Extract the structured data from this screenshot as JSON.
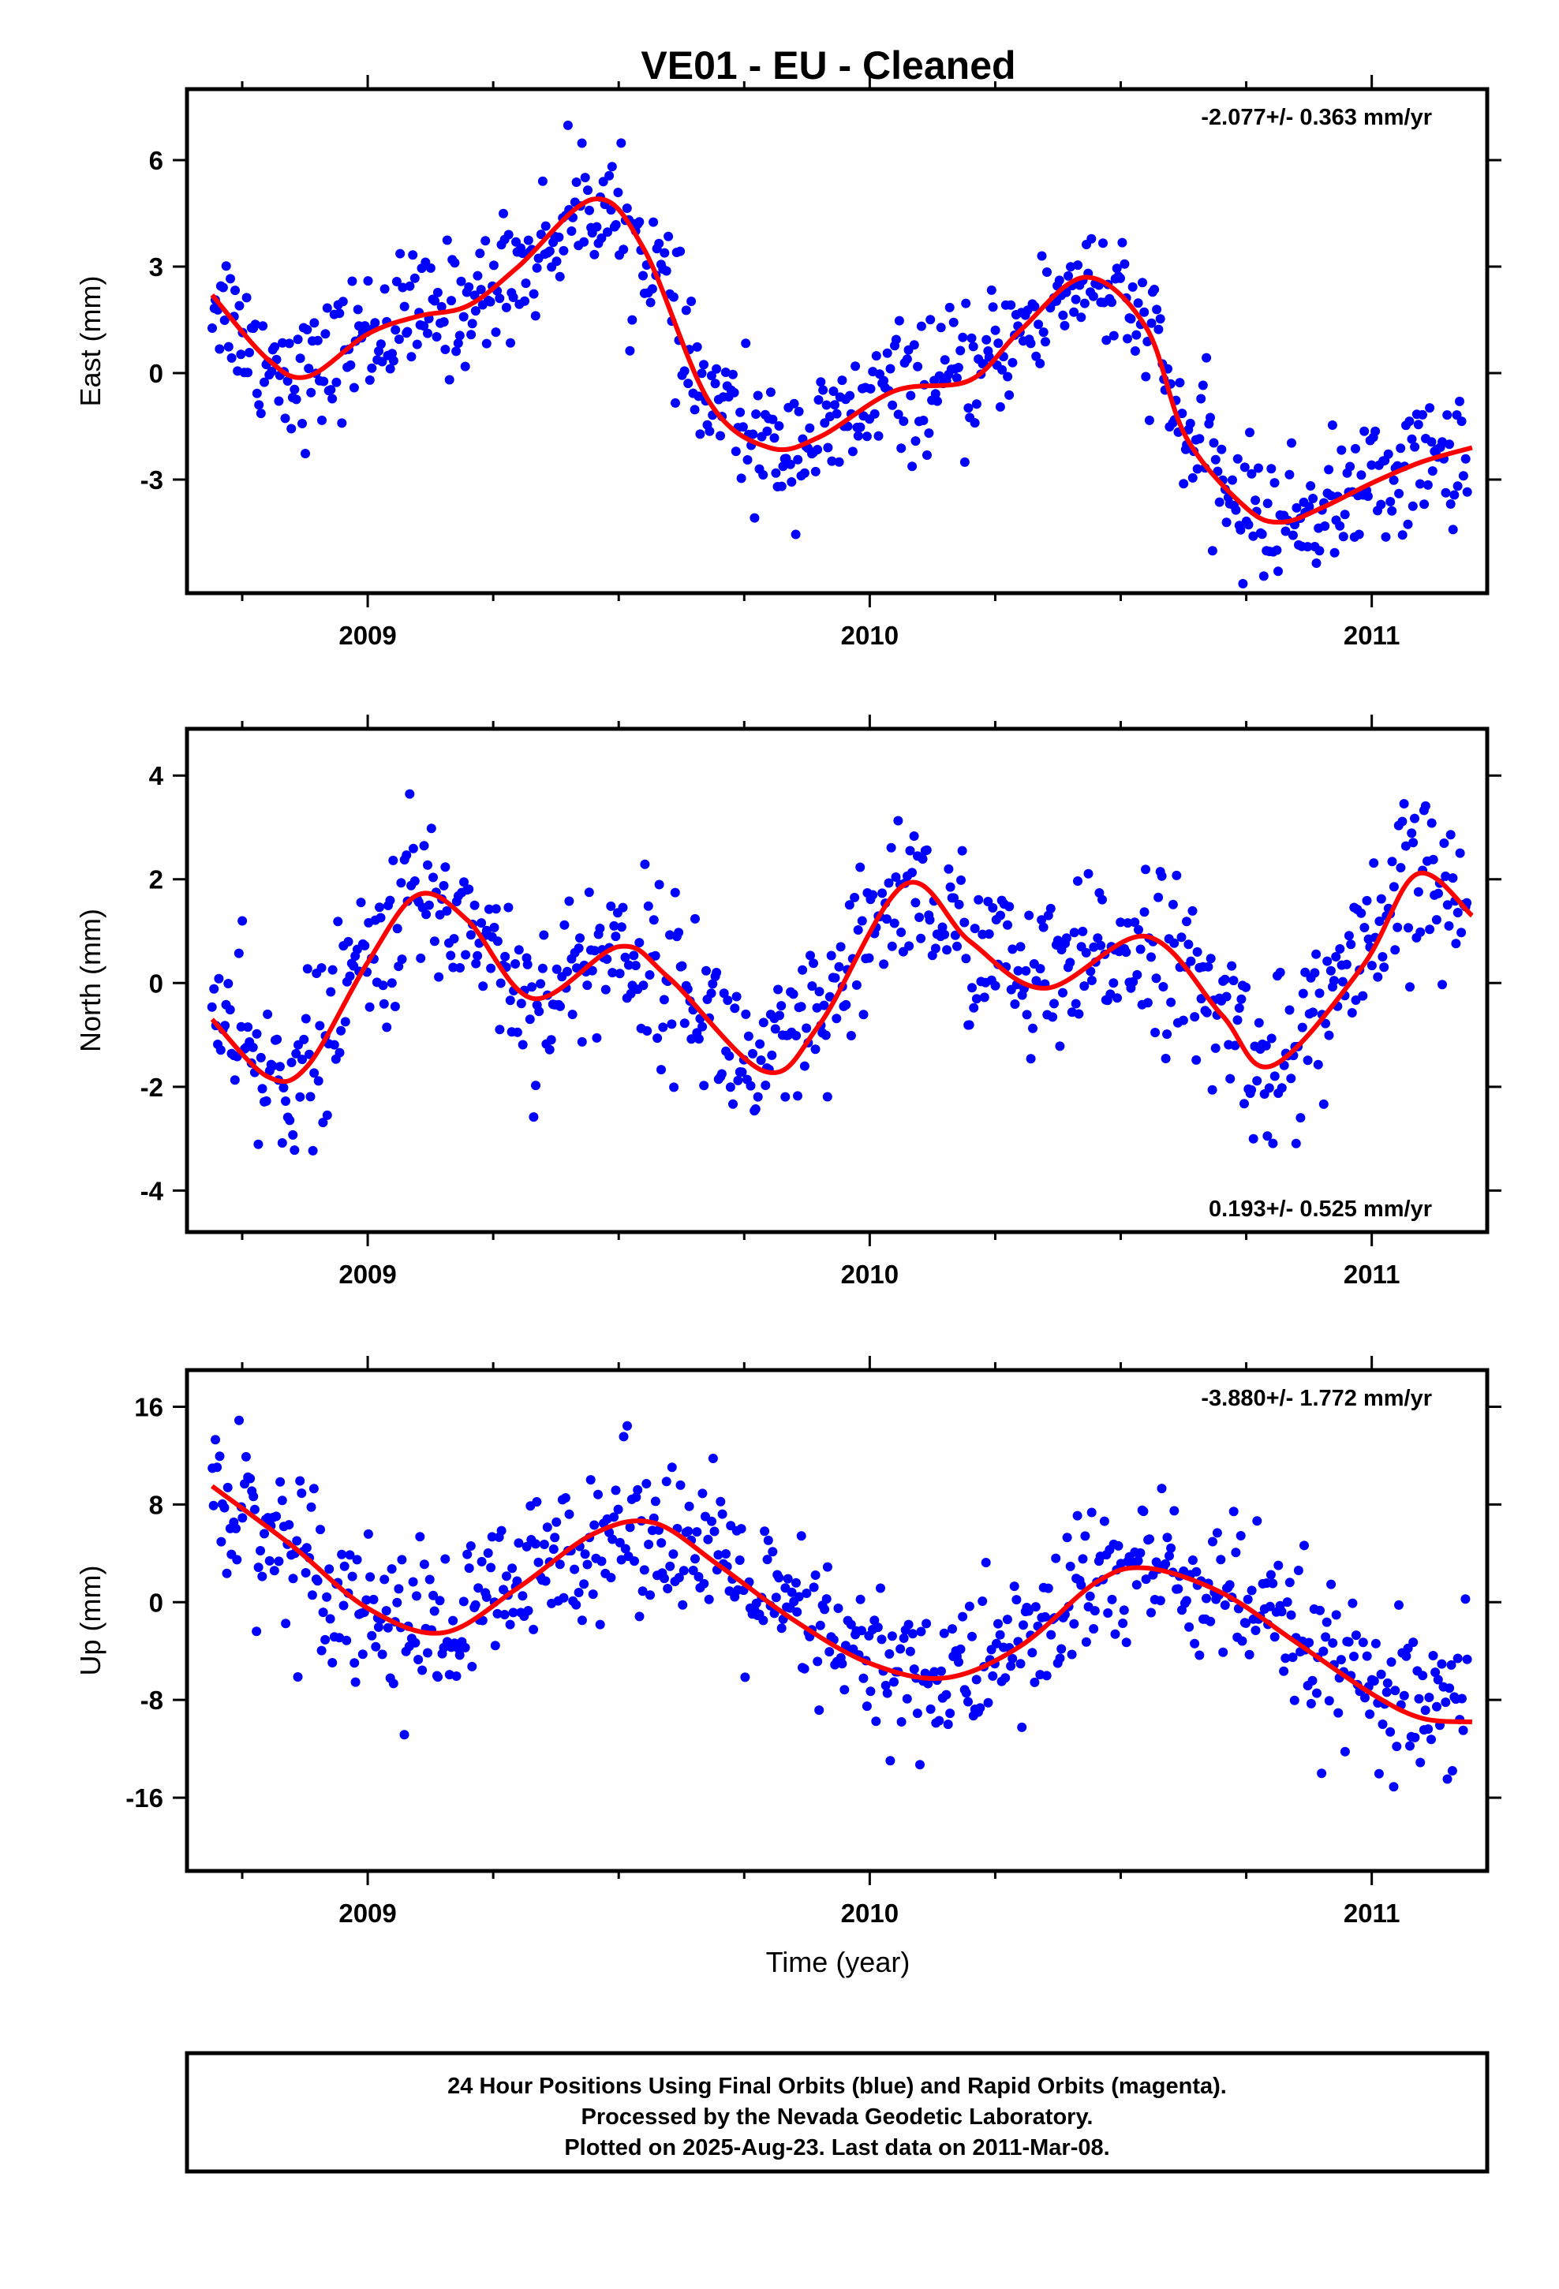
{
  "title": "VE01  - EU - Cleaned",
  "xlabel": "Time (year)",
  "caption": [
    "24 Hour Positions Using Final Orbits (blue) and Rapid Orbits (magenta).",
    "Processed by the Nevada Geodetic Laboratory.",
    "Plotted on 2025-Aug-23. Last data on 2011-Mar-08."
  ],
  "colors": {
    "points": "#0000ff",
    "fit": "#ff0000",
    "axes": "#000000"
  },
  "chart_data": [
    {
      "type": "scatter",
      "ylabel": "East (mm)",
      "rate": "-2.077+/- 0.363 mm/yr",
      "rate_position": "top-right",
      "xlim": [
        2008.64,
        2011.23
      ],
      "ylim": [
        -6.2,
        8.0
      ],
      "xticks": [
        2009,
        2010,
        2011
      ],
      "xtick_labels": [
        "2009",
        "2010",
        "2011"
      ],
      "yticks": [
        -3,
        0,
        3,
        6
      ],
      "ytick_labels": [
        "-3",
        "0",
        "3",
        "6"
      ],
      "fit": {
        "x": [
          2008.69,
          2008.8,
          2008.88,
          2009.0,
          2009.1,
          2009.2,
          2009.3,
          2009.45,
          2009.55,
          2009.68,
          2009.8,
          2009.9,
          2010.05,
          2010.2,
          2010.3,
          2010.43,
          2010.55,
          2010.63,
          2010.75,
          2010.82,
          2010.9,
          2011.0,
          2011.1,
          2011.2
        ],
        "y": [
          2.2,
          0.4,
          -0.1,
          1.1,
          1.6,
          1.9,
          3.0,
          4.9,
          3.5,
          -0.8,
          -2.1,
          -1.8,
          -0.5,
          -0.2,
          1.2,
          2.7,
          1.3,
          -1.8,
          -3.8,
          -4.2,
          -3.8,
          -3.1,
          -2.5,
          -2.1
        ]
      },
      "points": {
        "x_range": [
          2008.69,
          2011.19
        ],
        "count": 700,
        "residual_scatter_mm": 0.9
      }
    },
    {
      "type": "scatter",
      "ylabel": "North (mm)",
      "rate": "0.193+/- 0.525 mm/yr",
      "rate_position": "bottom-right",
      "xlim": [
        2008.64,
        2011.23
      ],
      "ylim": [
        -4.8,
        4.9
      ],
      "xticks": [
        2009,
        2010,
        2011
      ],
      "xtick_labels": [
        "2009",
        "2010",
        "2011"
      ],
      "yticks": [
        -4,
        -2,
        0,
        2,
        4
      ],
      "ytick_labels": [
        "-4",
        "-2",
        "0",
        "2",
        "4"
      ],
      "fit": {
        "x": [
          2008.69,
          2008.8,
          2008.88,
          2009.0,
          2009.1,
          2009.2,
          2009.33,
          2009.5,
          2009.6,
          2009.79,
          2009.9,
          2010.07,
          2010.2,
          2010.35,
          2010.55,
          2010.7,
          2010.8,
          2010.98,
          2011.09,
          2011.2
        ],
        "y": [
          -0.7,
          -1.8,
          -1.6,
          0.4,
          1.7,
          1.2,
          -0.3,
          0.7,
          0.1,
          -1.7,
          -0.8,
          1.9,
          0.8,
          -0.1,
          0.9,
          -0.6,
          -1.6,
          0.3,
          2.1,
          1.3
        ]
      },
      "points": {
        "x_range": [
          2008.69,
          2011.19
        ],
        "count": 700,
        "residual_scatter_mm": 0.8
      }
    },
    {
      "type": "scatter",
      "ylabel": "Up (mm)",
      "rate": "-3.880+/- 1.772 mm/yr",
      "rate_position": "top-right",
      "xlim": [
        2008.64,
        2011.23
      ],
      "ylim": [
        -22.0,
        19.0
      ],
      "xticks": [
        2009,
        2010,
        2011
      ],
      "xtick_labels": [
        "2009",
        "2010",
        "2011"
      ],
      "yticks": [
        -16,
        -8,
        0,
        8,
        16
      ],
      "ytick_labels": [
        "-16",
        "-8",
        "0",
        "8",
        "16"
      ],
      "fit": {
        "x": [
          2008.69,
          2008.85,
          2009.0,
          2009.15,
          2009.3,
          2009.45,
          2009.57,
          2009.7,
          2009.85,
          2010.0,
          2010.15,
          2010.3,
          2010.45,
          2010.55,
          2010.7,
          2010.85,
          2011.0,
          2011.1,
          2011.2
        ],
        "y": [
          9.5,
          4.6,
          -0.5,
          -2.5,
          1.2,
          5.6,
          6.5,
          3.0,
          -1.5,
          -5.0,
          -6.2,
          -3.6,
          1.6,
          2.8,
          0.8,
          -3.3,
          -7.5,
          -9.5,
          -9.8
        ]
      },
      "points": {
        "x_range": [
          2008.69,
          2011.19
        ],
        "count": 700,
        "residual_scatter_mm": 3.2
      }
    }
  ]
}
